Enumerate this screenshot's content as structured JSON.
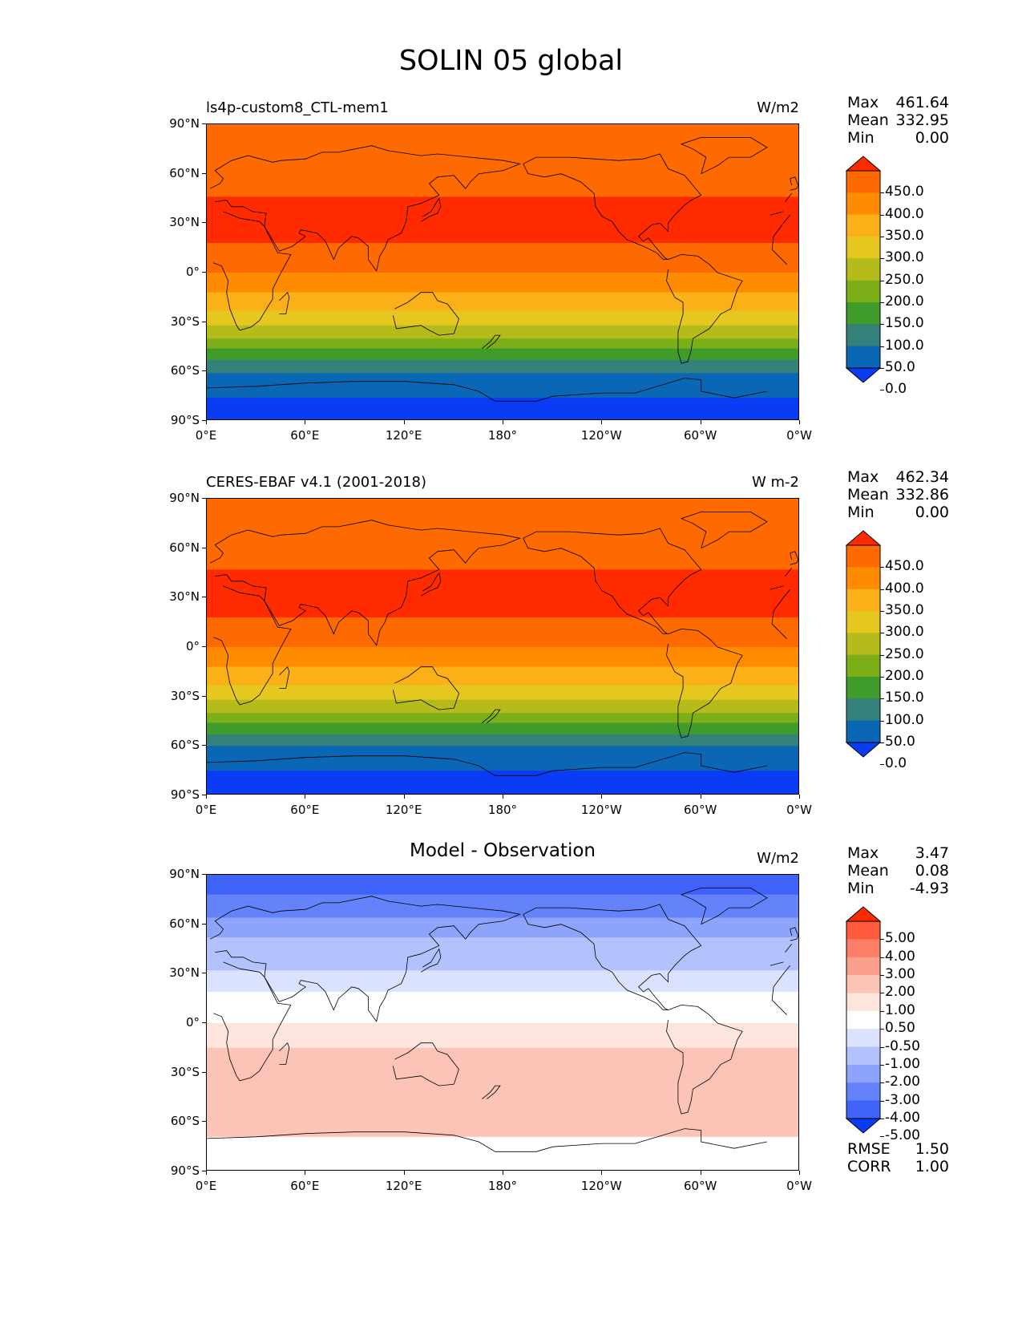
{
  "figure": {
    "title": "SOLIN 05 global"
  },
  "axes": {
    "lat_labels": [
      "90°N",
      "60°N",
      "30°N",
      "0°",
      "30°S",
      "60°S",
      "90°S"
    ],
    "lon_labels": [
      "0°E",
      "60°E",
      "120°E",
      "180°",
      "120°W",
      "60°W",
      "0°W"
    ]
  },
  "panels": [
    {
      "id": "model",
      "title_left": "ls4p-custom8_CTL-mem1",
      "title_center": "",
      "units": "W/m2",
      "stats": [
        {
          "key": "Max",
          "value": "461.64"
        },
        {
          "key": "Mean",
          "value": "332.95"
        },
        {
          "key": "Min",
          "value": "0.00"
        }
      ],
      "colorbar": {
        "labels": [
          "450.0",
          "400.0",
          "350.0",
          "300.0",
          "250.0",
          "200.0",
          "150.0",
          "100.0",
          "50.0",
          "0.0"
        ],
        "colors": [
          "#ff2a00",
          "#ff6a00",
          "#ff8c00",
          "#fbb017",
          "#e6c71f",
          "#b4bb1a",
          "#7cae17",
          "#3f9c2b",
          "#33817a",
          "#0a67b5",
          "#0a3cf5"
        ]
      },
      "bands_top_to_bottom": [
        {
          "lat_from": 90,
          "lat_to": 61,
          "color": "#ff6a00"
        },
        {
          "lat_from": 61,
          "lat_to": 46,
          "color": "#ff6a00"
        },
        {
          "lat_from": 46,
          "lat_to": 18,
          "color": "#ff2a00"
        },
        {
          "lat_from": 18,
          "lat_to": 0,
          "color": "#ff6a00"
        },
        {
          "lat_from": 0,
          "lat_to": -12,
          "color": "#ff8c00"
        },
        {
          "lat_from": 0,
          "lat_to": -12,
          "color": "#ff8c00"
        },
        {
          "lat_from": -12,
          "lat_to": -23,
          "color": "#fbb017"
        },
        {
          "lat_from": -23,
          "lat_to": -32,
          "color": "#e6c71f"
        },
        {
          "lat_from": -32,
          "lat_to": -40,
          "color": "#b4bb1a"
        },
        {
          "lat_from": -40,
          "lat_to": -46,
          "color": "#7cae17"
        },
        {
          "lat_from": -46,
          "lat_to": -53,
          "color": "#3f9c2b"
        },
        {
          "lat_from": -53,
          "lat_to": -61,
          "color": "#33817a"
        },
        {
          "lat_from": -61,
          "lat_to": -76,
          "color": "#0a67b5"
        },
        {
          "lat_from": -76,
          "lat_to": -90,
          "color": "#0a3cf5"
        }
      ]
    },
    {
      "id": "obs",
      "title_left": "CERES-EBAF v4.1 (2001-2018)",
      "title_center": "",
      "units": "W m-2",
      "stats": [
        {
          "key": "Max",
          "value": "462.34"
        },
        {
          "key": "Mean",
          "value": "332.86"
        },
        {
          "key": "Min",
          "value": "0.00"
        }
      ],
      "colorbar": {
        "labels": [
          "450.0",
          "400.0",
          "350.0",
          "300.0",
          "250.0",
          "200.0",
          "150.0",
          "100.0",
          "50.0",
          "0.0"
        ],
        "colors": [
          "#ff2a00",
          "#ff6a00",
          "#ff8c00",
          "#fbb017",
          "#e6c71f",
          "#b4bb1a",
          "#7cae17",
          "#3f9c2b",
          "#33817a",
          "#0a67b5",
          "#0a3cf5"
        ]
      },
      "bands_top_to_bottom": [
        {
          "lat_from": 90,
          "lat_to": 47,
          "color": "#ff6a00"
        },
        {
          "lat_from": 47,
          "lat_to": 18,
          "color": "#ff2a00"
        },
        {
          "lat_from": 18,
          "lat_to": 0,
          "color": "#ff6a00"
        },
        {
          "lat_from": 0,
          "lat_to": -12,
          "color": "#ff8c00"
        },
        {
          "lat_from": -12,
          "lat_to": -23,
          "color": "#fbb017"
        },
        {
          "lat_from": -23,
          "lat_to": -32,
          "color": "#e6c71f"
        },
        {
          "lat_from": -32,
          "lat_to": -40,
          "color": "#b4bb1a"
        },
        {
          "lat_from": -40,
          "lat_to": -46,
          "color": "#7cae17"
        },
        {
          "lat_from": -46,
          "lat_to": -53,
          "color": "#3f9c2b"
        },
        {
          "lat_from": -53,
          "lat_to": -60,
          "color": "#33817a"
        },
        {
          "lat_from": -60,
          "lat_to": -75,
          "color": "#0a67b5"
        },
        {
          "lat_from": -75,
          "lat_to": -90,
          "color": "#0a3cf5"
        }
      ]
    },
    {
      "id": "diff",
      "title_left": "",
      "title_center": "Model - Observation",
      "units": "W/m2",
      "stats": [
        {
          "key": "Max",
          "value": "3.47"
        },
        {
          "key": "Mean",
          "value": "0.08"
        },
        {
          "key": "Min",
          "value": "-4.93"
        }
      ],
      "colorbar": {
        "labels": [
          "5.00",
          "4.00",
          "3.00",
          "2.00",
          "1.00",
          "0.50",
          "-0.50",
          "-1.00",
          "-2.00",
          "-3.00",
          "-4.00",
          "-5.00"
        ],
        "colors": [
          "#ff2a00",
          "#ff5a3c",
          "#fc7e66",
          "#fba08d",
          "#fcc4b6",
          "#fde4dd",
          "#ffffff",
          "#dbe2ff",
          "#b3c1fd",
          "#8ea3fb",
          "#6482fa",
          "#3f63f8",
          "#0a3cf5"
        ]
      },
      "bands_top_to_bottom": [
        {
          "lat_from": 90,
          "lat_to": 78,
          "color": "#3f63f8"
        },
        {
          "lat_from": 78,
          "lat_to": 64,
          "color": "#6482fa"
        },
        {
          "lat_from": 64,
          "lat_to": 52,
          "color": "#8ea3fb"
        },
        {
          "lat_from": 52,
          "lat_to": 32,
          "color": "#b3c1fd"
        },
        {
          "lat_from": 32,
          "lat_to": 19,
          "color": "#dbe2ff"
        },
        {
          "lat_from": 19,
          "lat_to": 0,
          "color": "#ffffff"
        },
        {
          "lat_from": 0,
          "lat_to": -15,
          "color": "#fde4dd"
        },
        {
          "lat_from": -15,
          "lat_to": -69,
          "color": "#fcc4b6"
        },
        {
          "lat_from": -69,
          "lat_to": -90,
          "color": "#ffffff"
        }
      ],
      "scores": [
        {
          "key": "RMSE",
          "value": "1.50"
        },
        {
          "key": "CORR",
          "value": "1.00"
        }
      ]
    }
  ]
}
